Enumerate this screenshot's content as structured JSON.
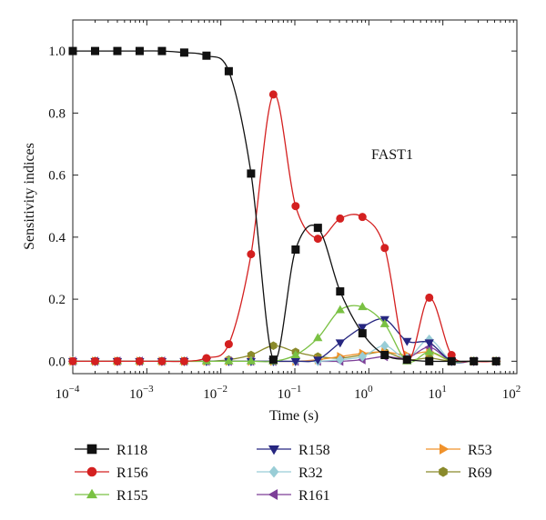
{
  "chart_data": {
    "type": "line",
    "xlabel": "Time (s)",
    "ylabel": "Sensitivity indices",
    "x_scale": "log",
    "xlim": [
      0.0001,
      100
    ],
    "ylim": [
      -0.04,
      1.1
    ],
    "x_ticks": [
      0.0001,
      0.001,
      0.01,
      0.1,
      1,
      10,
      100
    ],
    "x_tick_base": "10",
    "x_tick_exponents": [
      "−4",
      "−3",
      "−2",
      "−1",
      "0",
      "1",
      "2"
    ],
    "y_ticks": [
      "0.0",
      "0.2",
      "0.4",
      "0.6",
      "0.8",
      "1.0"
    ],
    "annotation": "FAST1",
    "legend_position": "bottom",
    "x": [
      0.0001,
      0.0002,
      0.0004,
      0.0008,
      0.0016,
      0.0032,
      0.0064,
      0.0128,
      0.0256,
      0.0512,
      0.1024,
      0.2048,
      0.4096,
      0.8192,
      1.6384,
      3.2768,
      6.5536,
      13.1072,
      26.2144,
      52.4288
    ],
    "series": [
      {
        "name": "R118",
        "color": "#111111",
        "marker": "square",
        "values": [
          1.0,
          1.0,
          1.0,
          1.0,
          1.0,
          0.995,
          0.985,
          0.935,
          0.605,
          0.005,
          0.36,
          0.43,
          0.225,
          0.09,
          0.02,
          0.005,
          0.0,
          0.0,
          0.0,
          0.0
        ]
      },
      {
        "name": "R156",
        "color": "#d42020",
        "marker": "circle",
        "values": [
          0.0,
          0.0,
          0.0,
          0.0,
          0.0,
          0.0,
          0.01,
          0.055,
          0.345,
          0.86,
          0.5,
          0.395,
          0.46,
          0.465,
          0.365,
          0.005,
          0.205,
          0.02,
          0.0,
          0.0
        ]
      },
      {
        "name": "R155",
        "color": "#7ac143",
        "marker": "triangle-up",
        "values": [
          0.0,
          0.0,
          0.0,
          0.0,
          0.0,
          0.0,
          0.0,
          0.0,
          0.0,
          0.0,
          0.02,
          0.075,
          0.165,
          0.175,
          0.12,
          0.0,
          0.03,
          0.0,
          0.0,
          0.0
        ]
      },
      {
        "name": "R158",
        "color": "#262680",
        "marker": "triangle-down",
        "values": [
          0.0,
          0.0,
          0.0,
          0.0,
          0.0,
          0.0,
          0.0,
          0.0,
          0.0,
          0.0,
          0.0,
          0.005,
          0.06,
          0.11,
          0.135,
          0.065,
          0.06,
          0.0,
          0.0,
          0.0
        ]
      },
      {
        "name": "R32",
        "color": "#99cdd6",
        "marker": "diamond",
        "values": [
          0.0,
          0.0,
          0.0,
          0.0,
          0.0,
          0.0,
          0.0,
          0.0,
          0.0,
          0.0,
          0.0,
          0.0,
          0.005,
          0.015,
          0.05,
          0.01,
          0.07,
          0.0,
          0.0,
          0.0
        ]
      },
      {
        "name": "R161",
        "color": "#7d3f98",
        "marker": "triangle-left",
        "values": [
          0.0,
          0.0,
          0.0,
          0.0,
          0.0,
          0.0,
          0.0,
          0.0,
          0.0,
          0.0,
          0.0,
          0.0,
          0.0,
          0.005,
          0.015,
          0.01,
          0.045,
          0.0,
          0.0,
          0.0
        ]
      },
      {
        "name": "R53",
        "color": "#f0922b",
        "marker": "triangle-right",
        "values": [
          0.0,
          0.0,
          0.0,
          0.0,
          0.0,
          0.0,
          0.0,
          0.0,
          0.0,
          0.0,
          0.0,
          0.005,
          0.015,
          0.025,
          0.03,
          0.02,
          0.03,
          0.0,
          0.0,
          0.0
        ]
      },
      {
        "name": "R69",
        "color": "#8a8a2b",
        "marker": "hexagon",
        "values": [
          0.0,
          0.0,
          0.0,
          0.0,
          0.0,
          0.0,
          0.0,
          0.005,
          0.02,
          0.05,
          0.03,
          0.015,
          0.01,
          0.02,
          0.03,
          0.005,
          0.01,
          0.0,
          0.0,
          0.0
        ]
      }
    ]
  }
}
